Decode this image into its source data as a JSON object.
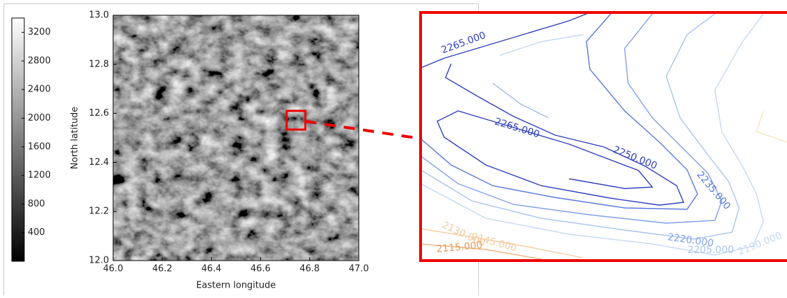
{
  "chart_data": {
    "type": "heatmap",
    "xlabel": "Eastern longitude",
    "ylabel": "North latitude",
    "xlim": [
      46.0,
      47.0
    ],
    "xticks": [
      {
        "value": 46,
        "label": "46.0"
      },
      46.2,
      46.4,
      46.6,
      46.8,
      {
        "value": 47,
        "label": "47.0"
      }
    ],
    "ylim": [
      12.0,
      13.0
    ],
    "yticks": [
      {
        "value": 12,
        "label": "12.0"
      },
      12.2,
      12.4,
      12.6,
      12.8,
      {
        "value": 13,
        "label": "13.0"
      }
    ],
    "colorbar": {
      "lim": [
        0,
        3400
      ],
      "ticks": [
        400,
        800,
        1200,
        1600,
        2000,
        2400,
        2800,
        3200
      ]
    }
  },
  "zoom": {
    "contour_labels": [
      "2265.000",
      "2265.000",
      "2250.000",
      "2235.000",
      "2220.000",
      "2205.000",
      "2190.000",
      "2145.000",
      "2130.000",
      "2115.000"
    ]
  }
}
